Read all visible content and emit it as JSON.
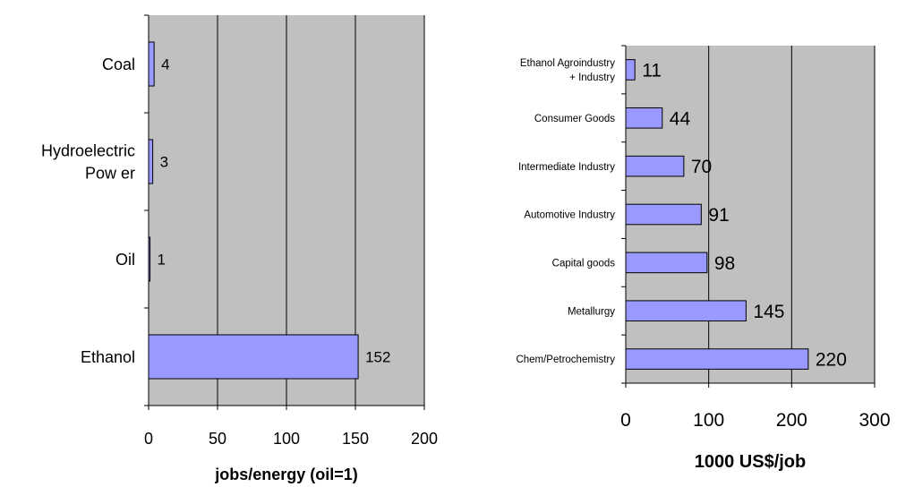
{
  "colors": {
    "plot_background": "#c0c0c0",
    "bar_fill": "#9999ff",
    "bar_stroke": "#000000",
    "gridline": "#000000"
  },
  "chart_data": [
    {
      "type": "bar",
      "orientation": "horizontal",
      "categories": [
        "Coal",
        "Hydroelectric Power",
        "Oil",
        "Ethanol"
      ],
      "category_lines": [
        [
          "Coal"
        ],
        [
          "Hydroelectric",
          "Pow er"
        ],
        [
          "Oil"
        ],
        [
          "Ethanol"
        ]
      ],
      "values": [
        4,
        3,
        1,
        152
      ],
      "value_labels": [
        "4",
        "3",
        "1",
        "152"
      ],
      "xlabel": "jobs/energy (oil=1)",
      "ylabel": "",
      "xlim": [
        0,
        200
      ],
      "xticks": [
        0,
        50,
        100,
        150,
        200
      ],
      "grid": "vertical",
      "legend": "none"
    },
    {
      "type": "bar",
      "orientation": "horizontal",
      "categories": [
        "Ethanol Agroindustry + Industry",
        "Consumer Goods",
        "Intermediate Industry",
        "Automotive Industry",
        "Capital goods",
        "Metallurgy",
        "Chem/Petrochemistry"
      ],
      "category_lines": [
        [
          "Ethanol Agroindustry",
          "+ Industry"
        ],
        [
          "Consumer Goods"
        ],
        [
          "Intermediate Industry"
        ],
        [
          "Automotive Industry"
        ],
        [
          "Capital goods"
        ],
        [
          "Metallurgy"
        ],
        [
          "Chem/Petrochemistry"
        ]
      ],
      "values": [
        11,
        44,
        70,
        91,
        98,
        145,
        220
      ],
      "value_labels": [
        "11",
        "44",
        "70",
        "91",
        "98",
        "145",
        "220"
      ],
      "xlabel": "1000 US$/job",
      "ylabel": "",
      "xlim": [
        0,
        300
      ],
      "xticks": [
        0,
        100,
        200,
        300
      ],
      "grid": "vertical",
      "legend": "none"
    }
  ]
}
